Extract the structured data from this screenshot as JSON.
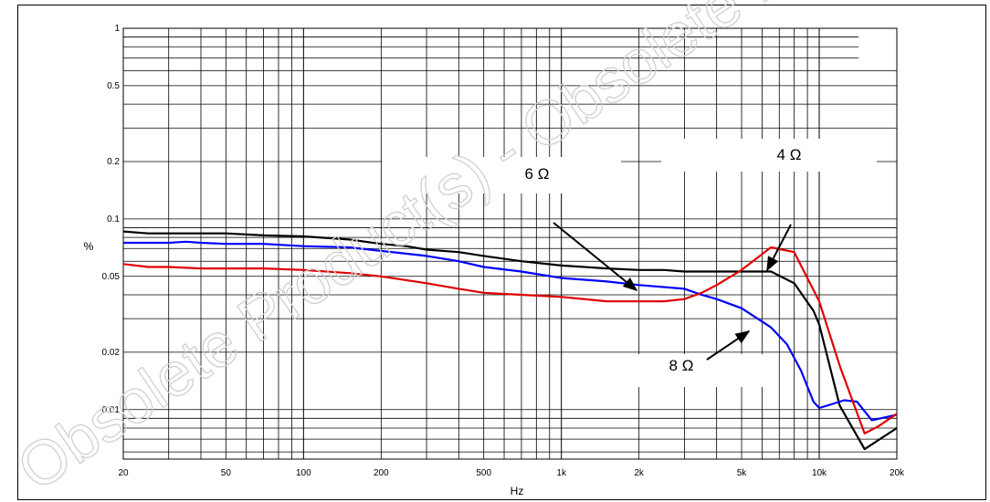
{
  "watermark": {
    "text": "Obsolete Product(s) - Obsolete Product(s)",
    "color": "#d0d0d0"
  },
  "chart_data": {
    "type": "line",
    "title": "",
    "xlabel": "Hz",
    "ylabel": "%",
    "x_scale": "log",
    "y_scale": "log",
    "xlim": [
      20,
      20000
    ],
    "ylim": [
      0.0055,
      1
    ],
    "x_ticks": [
      20,
      50,
      100,
      200,
      500,
      1000,
      2000,
      5000,
      10000,
      20000
    ],
    "x_tick_labels": [
      "20",
      "50",
      "100",
      "200",
      "500",
      "1k",
      "2k",
      "5k",
      "10k",
      "20k"
    ],
    "y_ticks": [
      1,
      0.5,
      0.2,
      0.1,
      0.05,
      0.02,
      0.01
    ],
    "y_tick_labels": [
      "1",
      "0.5",
      "0.2",
      "0.1",
      "0.05",
      "0.02",
      "0.01"
    ],
    "grid": true,
    "series": [
      {
        "name": "6 Ω",
        "color": "#000000",
        "points": [
          [
            20,
            0.086
          ],
          [
            25,
            0.084
          ],
          [
            30,
            0.084
          ],
          [
            40,
            0.084
          ],
          [
            50,
            0.084
          ],
          [
            70,
            0.082
          ],
          [
            100,
            0.081
          ],
          [
            150,
            0.078
          ],
          [
            200,
            0.074
          ],
          [
            250,
            0.072
          ],
          [
            300,
            0.069
          ],
          [
            400,
            0.067
          ],
          [
            500,
            0.064
          ],
          [
            700,
            0.06
          ],
          [
            1000,
            0.057
          ],
          [
            1500,
            0.055
          ],
          [
            2000,
            0.054
          ],
          [
            2500,
            0.054
          ],
          [
            3000,
            0.053
          ],
          [
            4000,
            0.053
          ],
          [
            5000,
            0.053
          ],
          [
            6500,
            0.053
          ],
          [
            8000,
            0.046
          ],
          [
            9500,
            0.033
          ],
          [
            10000,
            0.028
          ],
          [
            12000,
            0.0105
          ],
          [
            15000,
            0.0062
          ],
          [
            20000,
            0.008
          ]
        ]
      },
      {
        "name": "8 Ω",
        "color": "#0000ff",
        "points": [
          [
            20,
            0.075
          ],
          [
            25,
            0.075
          ],
          [
            30,
            0.075
          ],
          [
            35,
            0.076
          ],
          [
            40,
            0.075
          ],
          [
            50,
            0.074
          ],
          [
            70,
            0.074
          ],
          [
            100,
            0.072
          ],
          [
            150,
            0.071
          ],
          [
            200,
            0.068
          ],
          [
            300,
            0.064
          ],
          [
            400,
            0.06
          ],
          [
            500,
            0.056
          ],
          [
            700,
            0.053
          ],
          [
            1000,
            0.049
          ],
          [
            1500,
            0.047
          ],
          [
            2000,
            0.045
          ],
          [
            3000,
            0.043
          ],
          [
            3500,
            0.04
          ],
          [
            4000,
            0.038
          ],
          [
            5000,
            0.034
          ],
          [
            6500,
            0.027
          ],
          [
            7500,
            0.022
          ],
          [
            8500,
            0.016
          ],
          [
            9500,
            0.011
          ],
          [
            10000,
            0.0102
          ],
          [
            11000,
            0.0106
          ],
          [
            12500,
            0.0112
          ],
          [
            14000,
            0.011
          ],
          [
            16000,
            0.0088
          ],
          [
            20000,
            0.0094
          ]
        ]
      },
      {
        "name": "4 Ω",
        "color": "#e00000",
        "points": [
          [
            20,
            0.058
          ],
          [
            25,
            0.056
          ],
          [
            30,
            0.056
          ],
          [
            40,
            0.055
          ],
          [
            50,
            0.055
          ],
          [
            70,
            0.055
          ],
          [
            100,
            0.054
          ],
          [
            150,
            0.052
          ],
          [
            200,
            0.05
          ],
          [
            300,
            0.046
          ],
          [
            400,
            0.043
          ],
          [
            500,
            0.041
          ],
          [
            700,
            0.04
          ],
          [
            1000,
            0.039
          ],
          [
            1500,
            0.037
          ],
          [
            2000,
            0.037
          ],
          [
            2500,
            0.037
          ],
          [
            3000,
            0.038
          ],
          [
            3500,
            0.041
          ],
          [
            4000,
            0.045
          ],
          [
            5000,
            0.054
          ],
          [
            6500,
            0.071
          ],
          [
            8000,
            0.067
          ],
          [
            10000,
            0.037
          ],
          [
            12000,
            0.017
          ],
          [
            15000,
            0.0075
          ],
          [
            17000,
            0.0082
          ],
          [
            20000,
            0.0095
          ]
        ]
      }
    ],
    "annotations": [
      {
        "text": "6 Ω",
        "series": "6 Ω"
      },
      {
        "text": "4 Ω",
        "series": "4 Ω"
      },
      {
        "text": "8 Ω",
        "series": "8 Ω"
      }
    ]
  }
}
